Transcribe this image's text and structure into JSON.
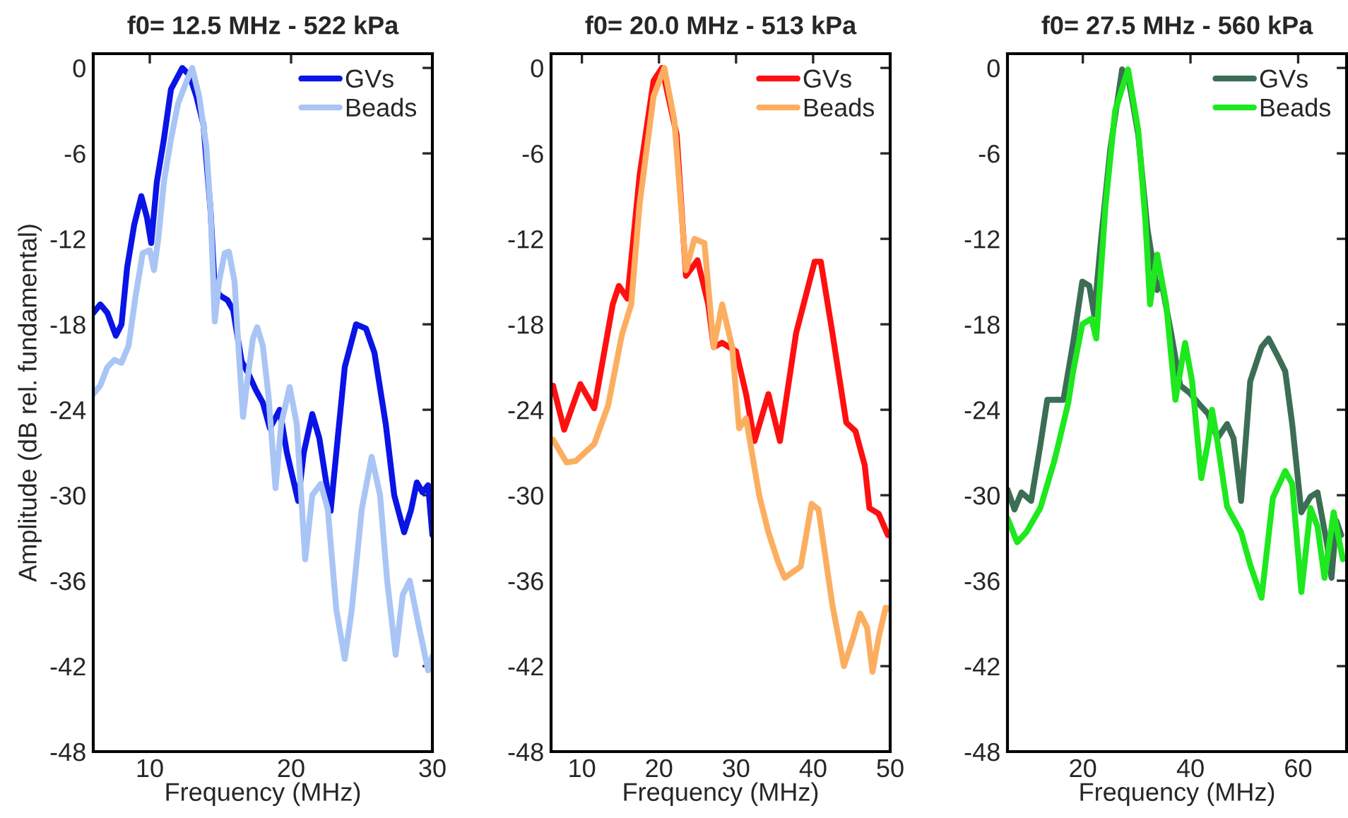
{
  "chart_data": [
    {
      "type": "line",
      "title": "f0= 12.5 MHz - 522 kPa",
      "xlabel": "Frequency (MHz)",
      "ylabel": "Amplitude (dB rel. fundamental)",
      "xlim": [
        6,
        30
      ],
      "ylim": [
        -48,
        1
      ],
      "xticks": [
        10,
        20,
        30
      ],
      "yticks": [
        -48,
        -42,
        -36,
        -30,
        -24,
        -18,
        -12,
        -6,
        0
      ],
      "legend": "top right",
      "line_style": "solid",
      "series": [
        {
          "name": "GVs",
          "color": "#0a14e6",
          "x": [
            6.0,
            6.5,
            7,
            7.6,
            8,
            8.4,
            8.9,
            9.4,
            9.8,
            10.1,
            10.5,
            11,
            11.5,
            12.3,
            12.8,
            13.3,
            13.8,
            14.3,
            14.6,
            15,
            15.5,
            15.9,
            16.5,
            17,
            17.5,
            18,
            18.5,
            19.2,
            19.7,
            20.5,
            20.9,
            21.5,
            22.0,
            22.8,
            23.3,
            23.8,
            24.6,
            25.3,
            25.9,
            26.7,
            27.3,
            28.0,
            28.5,
            28.9,
            29.3,
            29.7,
            30
          ],
          "values": [
            -17.2,
            -16.6,
            -17.2,
            -18.8,
            -18,
            -14,
            -11,
            -9,
            -10.5,
            -12.3,
            -8,
            -5,
            -1.5,
            0,
            -0.5,
            -2,
            -4,
            -10,
            -15.5,
            -16,
            -16.3,
            -17,
            -20.6,
            -21.5,
            -22.6,
            -23.5,
            -25.3,
            -24,
            -27,
            -30.4,
            -27,
            -24.3,
            -26,
            -31.1,
            -26,
            -21,
            -18,
            -18.3,
            -20,
            -25,
            -30,
            -32.6,
            -31,
            -29.1,
            -29.8,
            -29.3,
            -32.8
          ]
        },
        {
          "name": "Beads",
          "color": "#a9c5f5",
          "x": [
            6.0,
            6.5,
            7,
            7.5,
            8,
            8.5,
            9,
            9.5,
            10,
            10.3,
            10.6,
            11,
            11.5,
            12,
            12.5,
            13,
            13.5,
            14,
            14.3,
            14.6,
            14.9,
            15.3,
            15.6,
            16,
            16.3,
            16.6,
            16.9,
            17.3,
            17.6,
            18,
            18.4,
            18.9,
            19.3,
            19.9,
            20.4,
            21.0,
            21.5,
            22.1,
            22.6,
            23.2,
            23.8,
            24.3,
            25,
            25.7,
            26.3,
            26.8,
            27.4,
            27.9,
            28.4,
            29,
            29.7,
            30
          ],
          "values": [
            -22.9,
            -22.3,
            -21,
            -20.5,
            -20.7,
            -19.5,
            -16,
            -13,
            -12.8,
            -14.2,
            -12,
            -8,
            -5,
            -2.5,
            -1.2,
            0,
            -2,
            -5.5,
            -10,
            -17.8,
            -15,
            -13,
            -12.9,
            -15,
            -20,
            -24.5,
            -22,
            -19,
            -18.2,
            -19.5,
            -23,
            -29.5,
            -25,
            -22.4,
            -25,
            -34.5,
            -30,
            -29.2,
            -31,
            -38,
            -41.5,
            -38,
            -31,
            -27.3,
            -30,
            -36,
            -41.2,
            -37,
            -36,
            -39,
            -42.3,
            -41.3
          ]
        }
      ]
    },
    {
      "type": "line",
      "title": "f0= 20.0 MHz - 513 kPa",
      "xlabel": "Frequency (MHz)",
      "xlim": [
        6,
        50
      ],
      "ylim": [
        -48,
        1
      ],
      "xticks": [
        10,
        20,
        30,
        40,
        50
      ],
      "yticks": [
        -48,
        -42,
        -36,
        -30,
        -24,
        -18,
        -12,
        -6,
        0
      ],
      "legend": "top right",
      "line_style": "solid",
      "series": [
        {
          "name": "GVs",
          "color": "#ff1010",
          "x": [
            6.25,
            7.7,
            9.8,
            11.6,
            14,
            14.8,
            15.9,
            17.5,
            19.3,
            20.4,
            22.3,
            23.5,
            25,
            26.4,
            27.1,
            28.2,
            30,
            31.3,
            32.4,
            34.2,
            35.7,
            37.8,
            40.2,
            41,
            42.5,
            44.3,
            45.5,
            46.7,
            47.3,
            48.5,
            49.7
          ],
          "values": [
            -22.3,
            -25.4,
            -22.2,
            -23.9,
            -16.6,
            -15.3,
            -16.2,
            -7.5,
            -0.9,
            0,
            -4.7,
            -14.6,
            -13.5,
            -16.6,
            -19.6,
            -19.3,
            -19.9,
            -22.9,
            -26.2,
            -22.9,
            -26.2,
            -18.6,
            -13.6,
            -13.6,
            -18.6,
            -24.9,
            -25.5,
            -27.9,
            -30.9,
            -31.3,
            -32.8
          ]
        },
        {
          "name": "Beads",
          "color": "#fcae60",
          "x": [
            6.25,
            8,
            9.2,
            11.6,
            13.4,
            15.2,
            16.4,
            17.5,
            19.3,
            20.7,
            22,
            23.5,
            24.6,
            25.9,
            27.1,
            28.2,
            29.5,
            30.4,
            31.3,
            33,
            34.2,
            35.4,
            36.3,
            38.4,
            39.8,
            40.7,
            42.5,
            44.0,
            45.2,
            46.1,
            47,
            47.7,
            48.5,
            49.4,
            50
          ],
          "values": [
            -26.1,
            -27.7,
            -27.6,
            -26.4,
            -23.7,
            -18.7,
            -16.6,
            -9.5,
            -2,
            0,
            -3.7,
            -14.2,
            -12,
            -12.3,
            -19.6,
            -16.6,
            -19.6,
            -25.3,
            -24.6,
            -30,
            -32.6,
            -34.6,
            -35.8,
            -35,
            -30.6,
            -31,
            -37.7,
            -42.0,
            -40.0,
            -38.3,
            -39.3,
            -42.4,
            -40,
            -37.9,
            -38
          ]
        }
      ]
    },
    {
      "type": "line",
      "title": "f0= 27.5 MHz - 560 kPa",
      "xlabel": "Frequency (MHz)",
      "xlim": [
        6,
        69
      ],
      "ylim": [
        -48,
        1
      ],
      "xticks": [
        20,
        40,
        60
      ],
      "yticks": [
        -48,
        -42,
        -36,
        -30,
        -24,
        -18,
        -12,
        -6,
        0
      ],
      "legend": "top right",
      "line_style": "solid",
      "series": [
        {
          "name": "GVs",
          "color": "#3c6e55",
          "x": [
            6,
            7.3,
            8.6,
            10.4,
            12.1,
            13.4,
            14.7,
            16.4,
            18.2,
            19.9,
            21.2,
            22.1,
            23.4,
            25.1,
            27.3,
            28.6,
            30.3,
            32,
            33.8,
            34.6,
            36.4,
            38.1,
            39.8,
            41.6,
            43.3,
            45,
            46.8,
            48,
            49.4,
            51.1,
            53.2,
            54.5,
            56.3,
            57.6,
            58.9,
            60.6,
            62.3,
            63.6,
            65.4,
            66.2,
            67.1,
            68
          ],
          "values": [
            -29.6,
            -31,
            -29.8,
            -30.4,
            -26.5,
            -23.3,
            -23.3,
            -23.3,
            -19.3,
            -15,
            -15.3,
            -17.3,
            -12,
            -5.7,
            -0.1,
            -1,
            -4.7,
            -11.3,
            -15.6,
            -15,
            -18.6,
            -22.3,
            -22.8,
            -23.6,
            -24.3,
            -26,
            -25,
            -26,
            -30.4,
            -22,
            -19.6,
            -19,
            -20.3,
            -21.3,
            -25,
            -31.2,
            -30.1,
            -29.8,
            -33.5,
            -35.8,
            -31.8,
            -32.8
          ]
        },
        {
          "name": "Beads",
          "color": "#1ee81e",
          "x": [
            6,
            7.8,
            9.5,
            12.1,
            14.7,
            15.6,
            17.3,
            18.2,
            19.9,
            21.6,
            22.5,
            24.2,
            26,
            28.4,
            30.3,
            31.6,
            32.5,
            33.8,
            35.5,
            37.2,
            39,
            40.3,
            42,
            43.3,
            44,
            45,
            46.8,
            49.4,
            51.1,
            53.2,
            55.3,
            57.6,
            58.9,
            60.6,
            62.3,
            63.6,
            64.9,
            66.6,
            68.3
          ],
          "values": [
            -31.6,
            -33.3,
            -32.6,
            -30.9,
            -27.6,
            -26.2,
            -23.5,
            -21.3,
            -18,
            -17.6,
            -19,
            -9.7,
            -3,
            -0.1,
            -4.4,
            -10.6,
            -16.6,
            -13.1,
            -16.6,
            -23.3,
            -19.3,
            -22,
            -28.8,
            -26.2,
            -24,
            -26.2,
            -30.8,
            -32.6,
            -34.9,
            -37.2,
            -30.2,
            -28.3,
            -29.2,
            -36.8,
            -30.9,
            -32.2,
            -35.8,
            -31.2,
            -34.5
          ]
        }
      ]
    }
  ]
}
